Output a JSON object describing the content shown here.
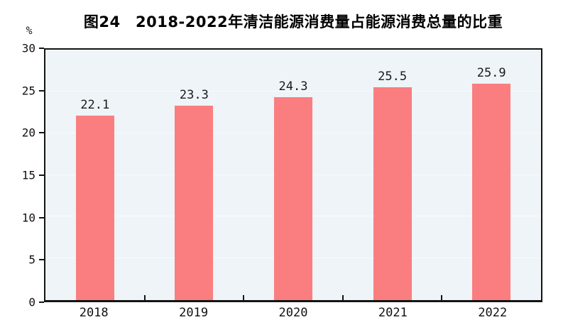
{
  "chart_data": {
    "type": "bar",
    "title": "图24　2018-2022年清洁能源消费量占能源消费总量的比重",
    "unit_label": "%",
    "categories": [
      "2018",
      "2019",
      "2020",
      "2021",
      "2022"
    ],
    "values": [
      22.1,
      23.3,
      24.3,
      25.5,
      25.9
    ],
    "value_labels": [
      "22.1",
      "23.3",
      "24.3",
      "25.5",
      "25.9"
    ],
    "ylim": [
      0,
      30
    ],
    "yticks": [
      0,
      5,
      10,
      15,
      20,
      25,
      30
    ],
    "grid": true,
    "legend_position": "none",
    "colors": {
      "bar": "#FA7E80",
      "plot_background": "#EEF4F7",
      "gridline": "#F8FBFD",
      "axis": "#141414",
      "text": "#1a1a1a"
    }
  }
}
